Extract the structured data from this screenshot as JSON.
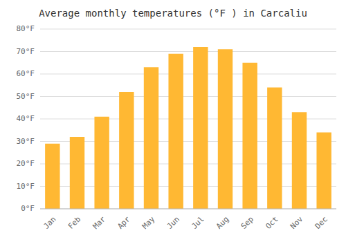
{
  "chart_data": {
    "type": "bar",
    "title": "Average monthly temperatures (°F ) in Carcaliu",
    "categories": [
      "Jan",
      "Feb",
      "Mar",
      "Apr",
      "May",
      "Jun",
      "Jul",
      "Aug",
      "Sep",
      "Oct",
      "Nov",
      "Dec"
    ],
    "values": [
      29,
      32,
      41,
      52,
      63,
      69,
      72,
      71,
      65,
      54,
      43,
      34
    ],
    "color": "#FFB833",
    "ylim": [
      0,
      80
    ],
    "yticks": [
      {
        "value": 0,
        "label": "0°F"
      },
      {
        "value": 10,
        "label": "10°F"
      },
      {
        "value": 20,
        "label": "20°F"
      },
      {
        "value": 30,
        "label": "30°F"
      },
      {
        "value": 40,
        "label": "40°F"
      },
      {
        "value": 50,
        "label": "50°F"
      },
      {
        "value": 60,
        "label": "60°F"
      },
      {
        "value": 70,
        "label": "70°F"
      },
      {
        "value": 80,
        "label": "80°F"
      }
    ],
    "grid": true
  }
}
